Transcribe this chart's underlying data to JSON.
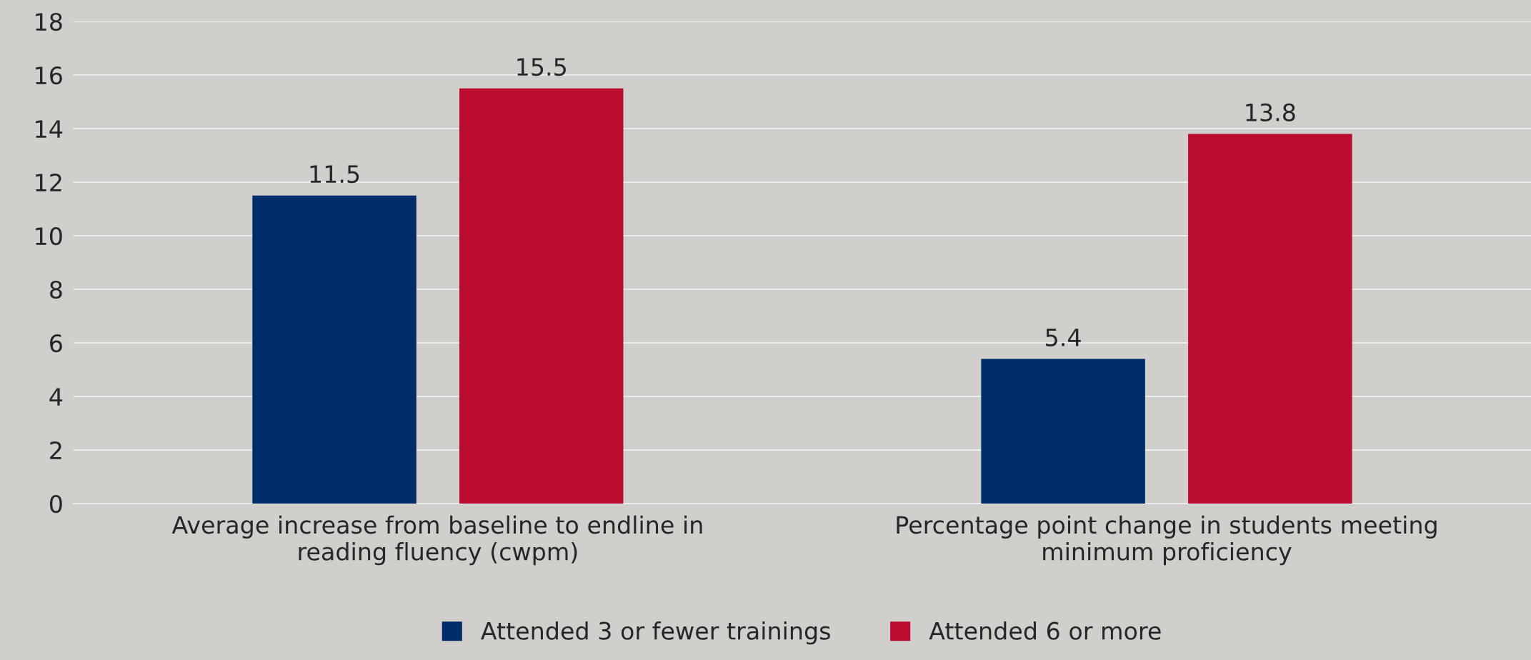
{
  "chart_data": {
    "type": "bar",
    "categories": [
      "Average increase from baseline to endline in reading fluency (cwpm)",
      "Percentage point change in students meeting minimum proficiency"
    ],
    "series": [
      {
        "name": "Attended 3 or fewer trainings",
        "color": "#002d6a",
        "values": [
          11.5,
          5.4
        ]
      },
      {
        "name": "Attended 6 or more",
        "color": "#ba0c2f",
        "values": [
          15.5,
          13.8
        ]
      }
    ],
    "ylim": [
      0,
      18
    ],
    "yticks": [
      0,
      2,
      4,
      6,
      8,
      10,
      12,
      14,
      16,
      18
    ],
    "grid": "y",
    "legend": "bottom",
    "data_labels": true
  }
}
